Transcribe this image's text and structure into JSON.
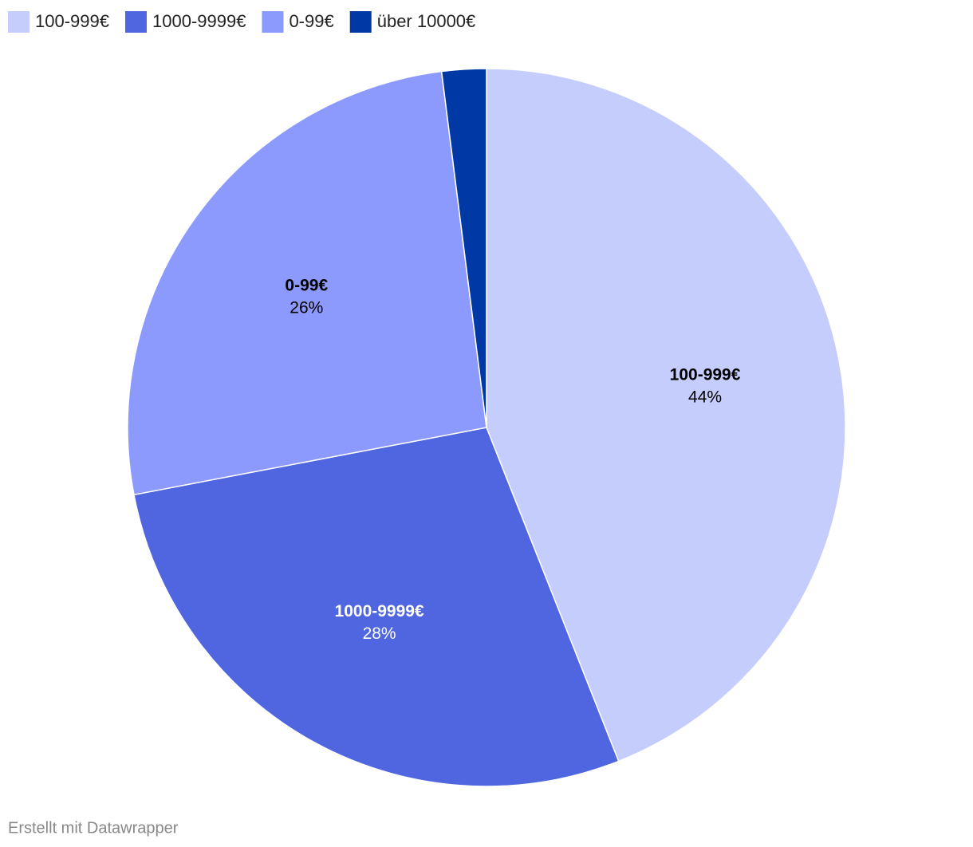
{
  "chart_data": {
    "type": "pie",
    "categories": [
      "100-999€",
      "1000-9999€",
      "0-99€",
      "über 10000€"
    ],
    "values": [
      44,
      28,
      26,
      2
    ],
    "value_labels": [
      "44%",
      "28%",
      "26%",
      null
    ],
    "colors": [
      "#c5cdfd",
      "#4f66e0",
      "#8c99fd",
      "#0039a6"
    ],
    "legend": "top-left",
    "credit": "Erstellt mit Datawrapper"
  }
}
